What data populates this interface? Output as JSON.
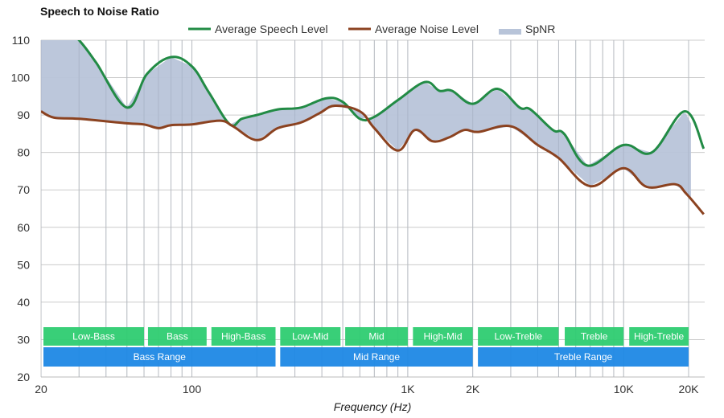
{
  "chart_data": {
    "type": "line",
    "title": "Speech to Noise Ratio",
    "xlabel": "Frequency (Hz)",
    "ylabel": "",
    "xscale": "log",
    "xlim": [
      20,
      24000
    ],
    "ylim": [
      20,
      110
    ],
    "grid": true,
    "legend_position": "top-center",
    "x_ticks": [
      {
        "value": 20,
        "label": "20"
      },
      {
        "value": 100,
        "label": "100"
      },
      {
        "value": 1000,
        "label": "1K"
      },
      {
        "value": 2000,
        "label": "2K"
      },
      {
        "value": 10000,
        "label": "10K"
      },
      {
        "value": 20000,
        "label": "20K"
      }
    ],
    "x_minor_gridlines": [
      30,
      40,
      50,
      60,
      70,
      80,
      90,
      200,
      300,
      400,
      500,
      600,
      700,
      800,
      900,
      3000,
      4000,
      5000,
      6000,
      7000,
      8000,
      9000
    ],
    "y_ticks": [
      20,
      30,
      40,
      50,
      60,
      70,
      80,
      90,
      100,
      110
    ],
    "legend": [
      {
        "name": "Average Speech Level",
        "color": "#228b45",
        "kind": "line"
      },
      {
        "name": "Average Noise Level",
        "color": "#8b4220",
        "kind": "line"
      },
      {
        "name": "SpNR",
        "color": "#b8c4d9",
        "kind": "area"
      }
    ],
    "series": [
      {
        "name": "Average Speech Level",
        "color": "#228b45",
        "points": [
          [
            20,
            118
          ],
          [
            25,
            114
          ],
          [
            30,
            110
          ],
          [
            36,
            104
          ],
          [
            50,
            92
          ],
          [
            62,
            101
          ],
          [
            80,
            105.5
          ],
          [
            100,
            103
          ],
          [
            120,
            96
          ],
          [
            150,
            87.5
          ],
          [
            170,
            89
          ],
          [
            200,
            90
          ],
          [
            250,
            91.5
          ],
          [
            320,
            92
          ],
          [
            420,
            94.5
          ],
          [
            500,
            93.5
          ],
          [
            600,
            89
          ],
          [
            700,
            89.5
          ],
          [
            900,
            94
          ],
          [
            1200,
            98.8
          ],
          [
            1400,
            96.5
          ],
          [
            1600,
            96.5
          ],
          [
            2000,
            93
          ],
          [
            2600,
            97
          ],
          [
            3300,
            92
          ],
          [
            3700,
            91.5
          ],
          [
            4700,
            86
          ],
          [
            5300,
            85
          ],
          [
            6800,
            76.5
          ],
          [
            10000,
            82
          ],
          [
            13500,
            80
          ],
          [
            19200,
            91
          ],
          [
            23500,
            81
          ]
        ]
      },
      {
        "name": "Average Noise Level",
        "color": "#8b4220",
        "points": [
          [
            20,
            91
          ],
          [
            23,
            89.3
          ],
          [
            30,
            89
          ],
          [
            50,
            87.8
          ],
          [
            60,
            87.5
          ],
          [
            70,
            86.5
          ],
          [
            80,
            87.3
          ],
          [
            100,
            87.5
          ],
          [
            135,
            88.5
          ],
          [
            155,
            87
          ],
          [
            200,
            83.3
          ],
          [
            250,
            86.5
          ],
          [
            320,
            88
          ],
          [
            390,
            90.5
          ],
          [
            460,
            92.5
          ],
          [
            600,
            91
          ],
          [
            700,
            86.5
          ],
          [
            900,
            80.5
          ],
          [
            1080,
            86
          ],
          [
            1300,
            83
          ],
          [
            1550,
            84
          ],
          [
            1830,
            86
          ],
          [
            2130,
            85.5
          ],
          [
            3000,
            87
          ],
          [
            4000,
            82
          ],
          [
            5000,
            78.5
          ],
          [
            7000,
            71
          ],
          [
            10000,
            75.8
          ],
          [
            12800,
            70.8
          ],
          [
            17300,
            71.5
          ],
          [
            19500,
            69
          ],
          [
            23500,
            63.5
          ]
        ]
      }
    ],
    "area": {
      "name": "SpNR",
      "color": "#b8c4d9",
      "between": [
        "Average Speech Level",
        "Average Noise Level"
      ],
      "x_range": [
        20,
        20500
      ]
    },
    "bands_top": [
      {
        "label": "Low-Bass",
        "from": 20,
        "to": 60
      },
      {
        "label": "Bass",
        "from": 61,
        "to": 117
      },
      {
        "label": "High-Bass",
        "from": 120,
        "to": 244
      },
      {
        "label": "Low-Mid",
        "from": 250,
        "to": 488
      },
      {
        "label": "Mid",
        "from": 500,
        "to": 1000
      },
      {
        "label": "High-Mid",
        "from": 1030,
        "to": 2000
      },
      {
        "label": "Low-Treble",
        "from": 2060,
        "to": 5000
      },
      {
        "label": "Treble",
        "from": 5200,
        "to": 10000
      },
      {
        "label": "High-Treble",
        "from": 10350,
        "to": 20000
      }
    ],
    "bands_bottom": [
      {
        "label": "Bass Range",
        "from": 20,
        "to": 244
      },
      {
        "label": "Mid Range",
        "from": 250,
        "to": 2000
      },
      {
        "label": "Treble Range",
        "from": 2060,
        "to": 20000
      }
    ],
    "band_colors": {
      "top": "#2ecc71",
      "bottom": "#1e88e5"
    }
  }
}
